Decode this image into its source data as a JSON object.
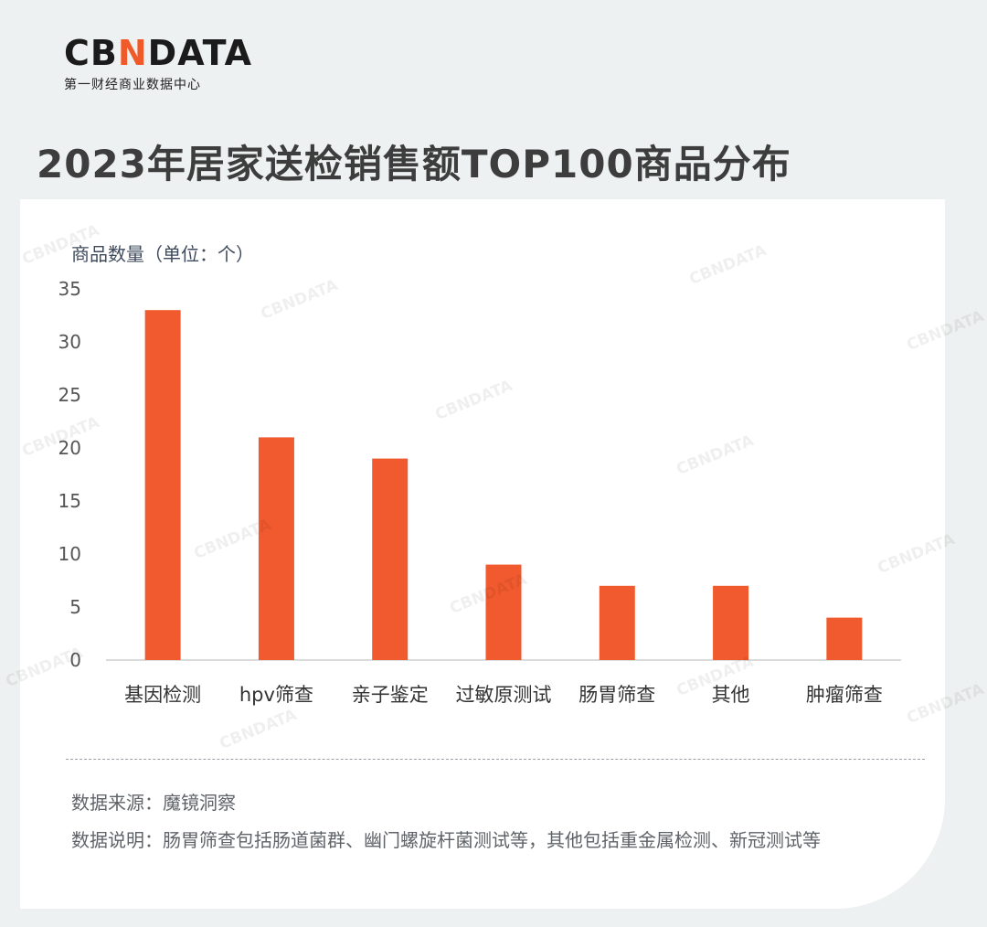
{
  "brand": {
    "logo_prefix": "CB",
    "logo_mark": "N",
    "logo_suffix": "DATA",
    "subtitle": "第一财经商业数据中心",
    "accent": "#f05a28"
  },
  "title": "2023年居家送检销售额TOP100商品分布",
  "chart_data": {
    "type": "bar",
    "title": "2023年居家送检销售额TOP100商品分布",
    "ylabel": "商品数量（单位：个）",
    "xlabel": "",
    "categories": [
      "基因检测",
      "hpv筛查",
      "亲子鉴定",
      "过敏原测试",
      "肠胃筛查",
      "其他",
      "肿瘤筛查"
    ],
    "values": [
      33,
      21,
      19,
      9,
      7,
      7,
      4
    ],
    "ylim": [
      0,
      35
    ],
    "yticks": [
      0,
      5,
      10,
      15,
      20,
      25,
      30,
      35
    ],
    "grid": false,
    "bar_color": "#f15a2e"
  },
  "footer": {
    "source": "数据来源：魔镜洞察",
    "note": "数据说明：肠胃筛查包括肠道菌群、幽门螺旋杆菌测试等，其他包括重金属检测、新冠测试等"
  },
  "watermark_text": "CBNDATA"
}
